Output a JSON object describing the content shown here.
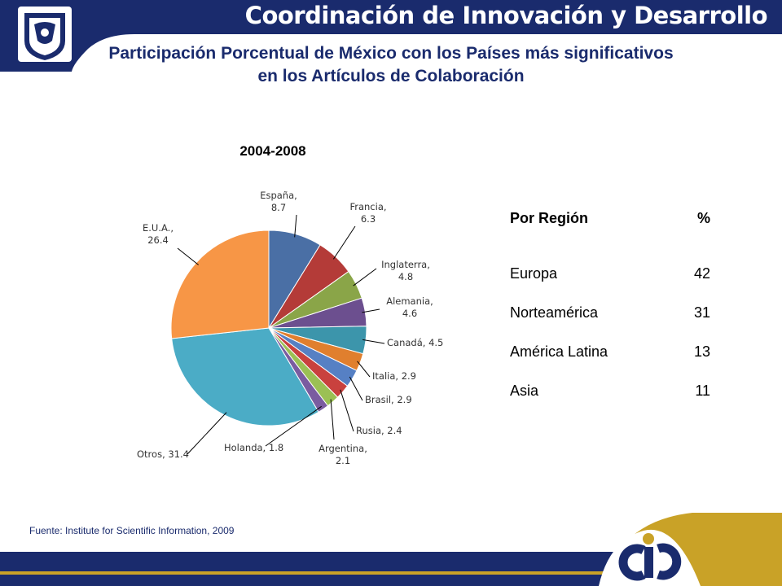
{
  "header": {
    "title": "Coordinación de Innovación y Desarrollo",
    "logo_icon": "unam-crest-icon",
    "bar_color": "#1a2b6d"
  },
  "page_title": "Participación Porcentual de México con los Países más significativos en los Artículos de Colaboración",
  "chart_data": {
    "type": "pie",
    "title": "2004-2008",
    "slices": [
      {
        "label": "España",
        "value_label": "8.7",
        "value": 8.7,
        "color": "#4a6fa5"
      },
      {
        "label": "Francia",
        "value_label": "6.3",
        "value": 6.3,
        "color": "#b43b38"
      },
      {
        "label": "Inglaterra",
        "value_label": "4.8",
        "value": 4.8,
        "color": "#8aa548"
      },
      {
        "label": "Alemania",
        "value_label": "4.6",
        "value": 4.6,
        "color": "#6c4f8f"
      },
      {
        "label": "Canadá",
        "value_label": "4.5",
        "value": 4.5,
        "color": "#3c95ab"
      },
      {
        "label": "Italia",
        "value_label": "2.9",
        "value": 2.9,
        "color": "#e07f2e"
      },
      {
        "label": "Brasil",
        "value_label": "2.9",
        "value": 2.9,
        "color": "#5680c4"
      },
      {
        "label": "Rusia",
        "value_label": "2.4",
        "value": 2.4,
        "color": "#c9413e"
      },
      {
        "label": "Argentina",
        "value_label": "2.1",
        "value": 2.1,
        "color": "#9bc054"
      },
      {
        "label": "Holanda",
        "value_label": "1.8",
        "value": 1.8,
        "color": "#7a5ca0"
      },
      {
        "label": "Otros",
        "value_label": "31.4",
        "value": 31.4,
        "color": "#4bacc6"
      },
      {
        "label": "E.U.A.",
        "value_label": "26.4",
        "value": 26.4,
        "color": "#f79646"
      }
    ]
  },
  "region_table": {
    "header_region": "Por Región",
    "header_pct": "%",
    "rows": [
      {
        "region": "Europa",
        "pct": "42"
      },
      {
        "region": "Norteamérica",
        "pct": "31"
      },
      {
        "region": "América Latina",
        "pct": "13"
      },
      {
        "region": "Asia",
        "pct": "11"
      }
    ]
  },
  "source": "Fuente: Institute for Scientific Information, 2009",
  "footer": {
    "logo_icon": "cid-logo-icon",
    "bar_color": "#1a2b6d",
    "accent_color": "#c9a227"
  }
}
